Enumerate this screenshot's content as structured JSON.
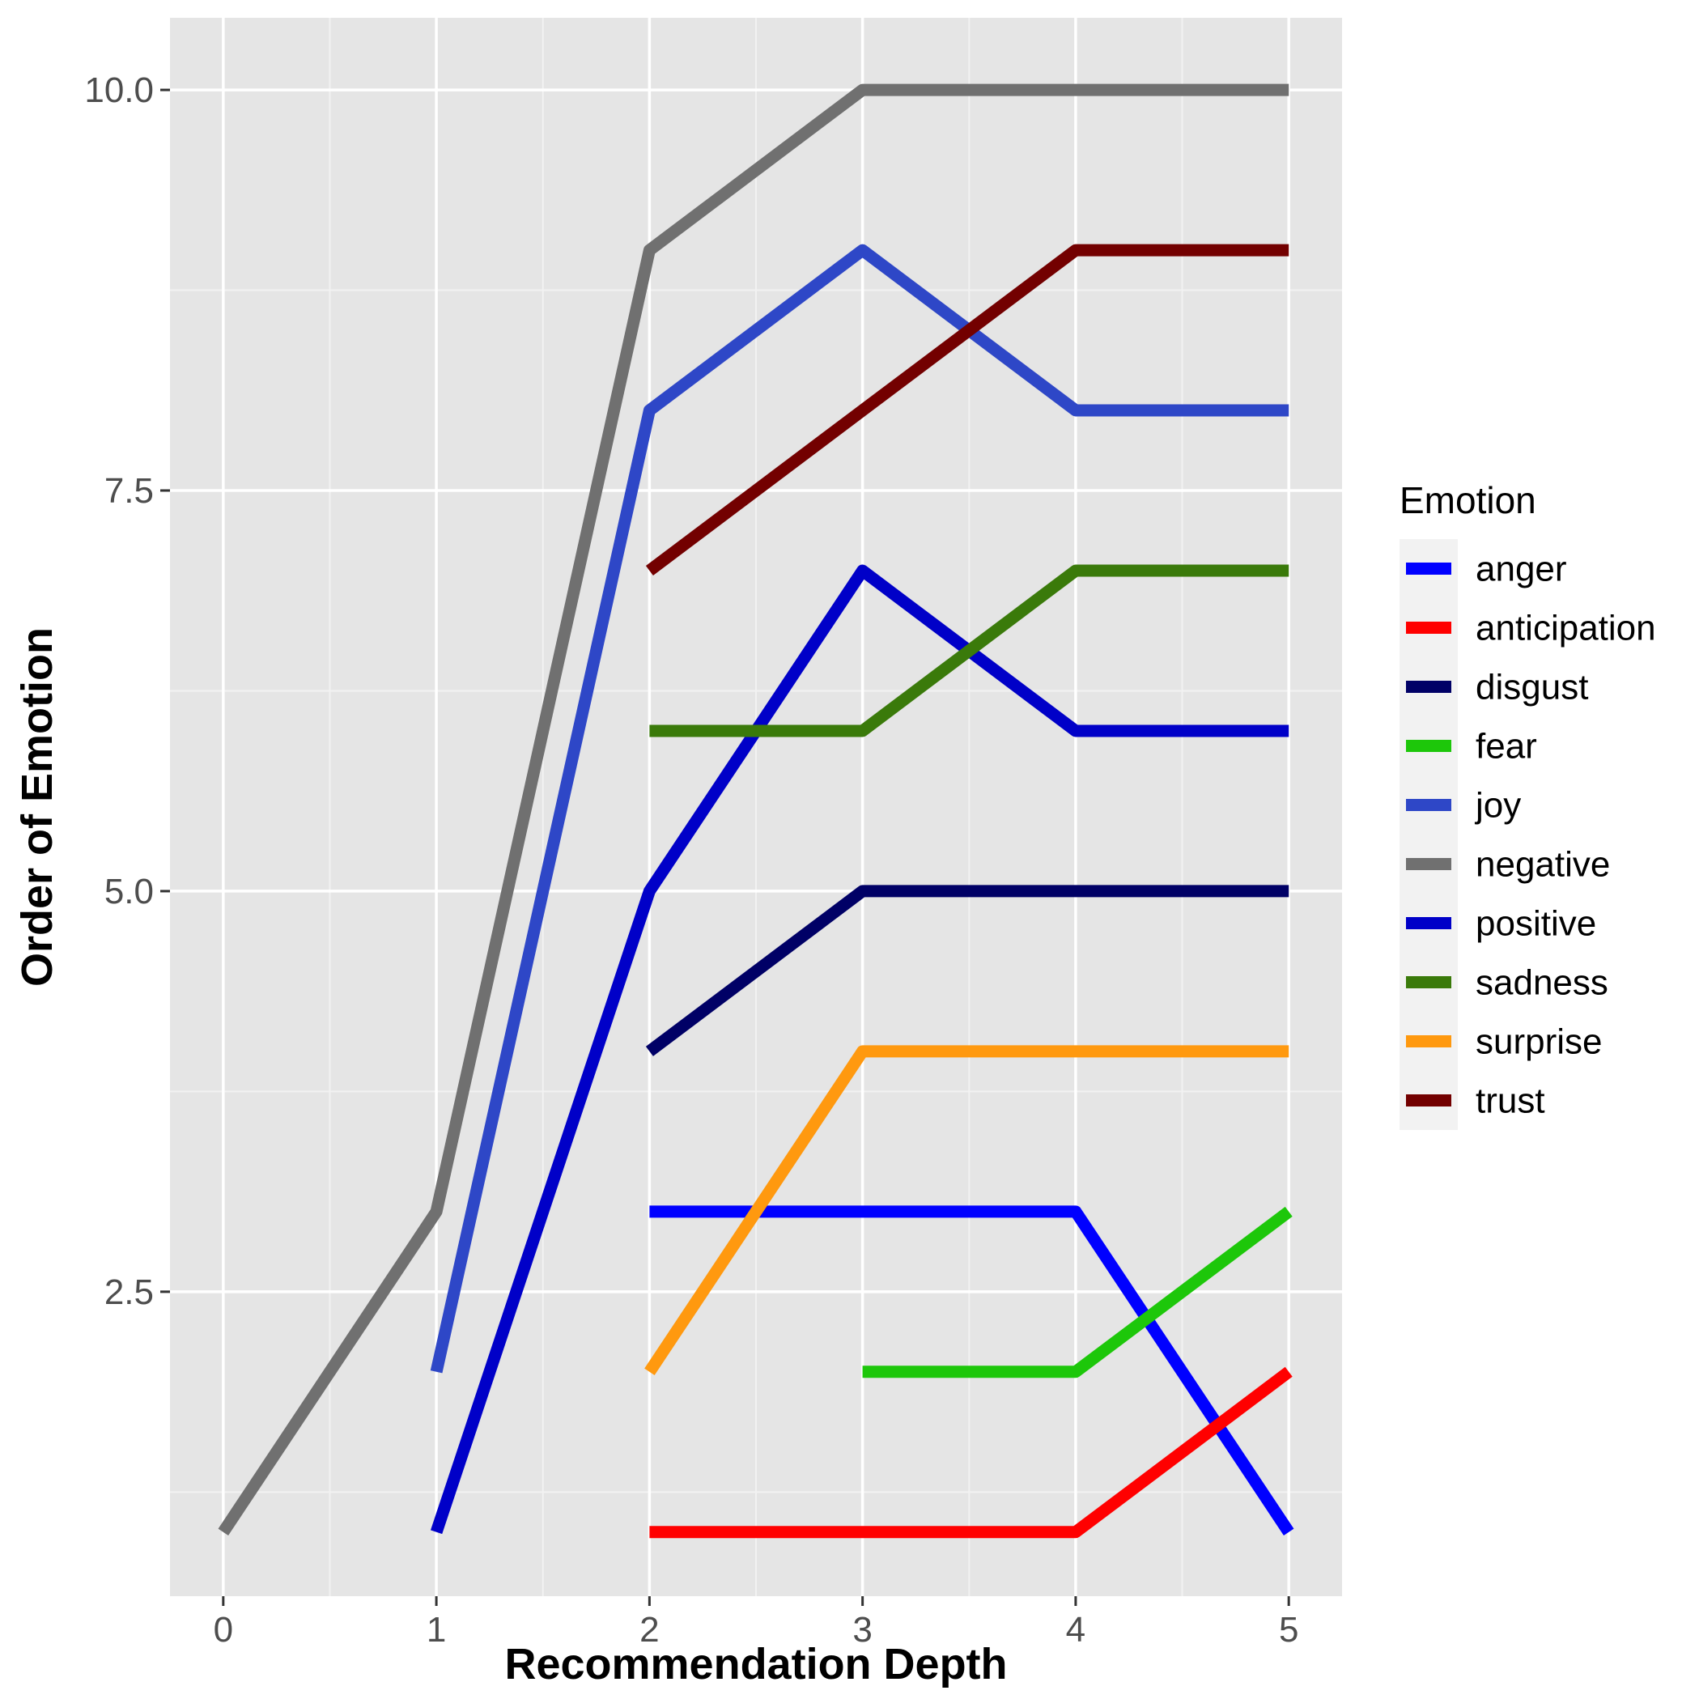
{
  "chart_data": {
    "type": "line",
    "title": "",
    "xlabel": "Recommendation Depth",
    "ylabel": "Order of Emotion",
    "xlim": [
      -0.25,
      5.25
    ],
    "ylim": [
      0.6,
      10.45
    ],
    "xticks": [
      0,
      1,
      2,
      3,
      4,
      5
    ],
    "xtick_labels": [
      "0",
      "1",
      "2",
      "3",
      "4",
      "5"
    ],
    "yticks": [
      2.5,
      5.0,
      7.5,
      10.0
    ],
    "ytick_labels": [
      "2.5",
      "5.0",
      "7.5",
      "10.0"
    ],
    "grid": true,
    "legend_title": "Emotion",
    "legend_position": "right",
    "series": [
      {
        "name": "anger",
        "color": "#0000FF",
        "x": [
          2,
          3,
          4,
          5
        ],
        "y": [
          3,
          3,
          3,
          1
        ]
      },
      {
        "name": "anticipation",
        "color": "#FF0000",
        "x": [
          2,
          3,
          4,
          5
        ],
        "y": [
          1,
          1,
          1,
          2
        ]
      },
      {
        "name": "disgust",
        "color": "#000066",
        "x": [
          2,
          3,
          4,
          5
        ],
        "y": [
          4,
          5,
          5,
          5
        ]
      },
      {
        "name": "fear",
        "color": "#1DC70A",
        "x": [
          3,
          4,
          5
        ],
        "y": [
          2,
          2,
          3
        ]
      },
      {
        "name": "joy",
        "color": "#2E47C7",
        "x": [
          1,
          2,
          3,
          4,
          5
        ],
        "y": [
          2,
          8,
          9,
          8,
          8
        ]
      },
      {
        "name": "negative",
        "color": "#707070",
        "x": [
          0,
          1,
          2,
          3,
          4,
          5
        ],
        "y": [
          1,
          3,
          9,
          10,
          10,
          10
        ]
      },
      {
        "name": "positive",
        "color": "#0000C8",
        "x": [
          1,
          2,
          3,
          4,
          5
        ],
        "y": [
          1,
          5,
          7,
          6,
          6
        ]
      },
      {
        "name": "sadness",
        "color": "#3A7A0A",
        "x": [
          2,
          3,
          4,
          5
        ],
        "y": [
          6,
          6,
          7,
          7
        ]
      },
      {
        "name": "surprise",
        "color": "#FF990F",
        "x": [
          2,
          3,
          4,
          5
        ],
        "y": [
          2,
          4,
          4,
          4
        ]
      },
      {
        "name": "trust",
        "color": "#730000",
        "x": [
          2,
          3,
          4,
          5
        ],
        "y": [
          7,
          8,
          9,
          9
        ]
      }
    ]
  }
}
